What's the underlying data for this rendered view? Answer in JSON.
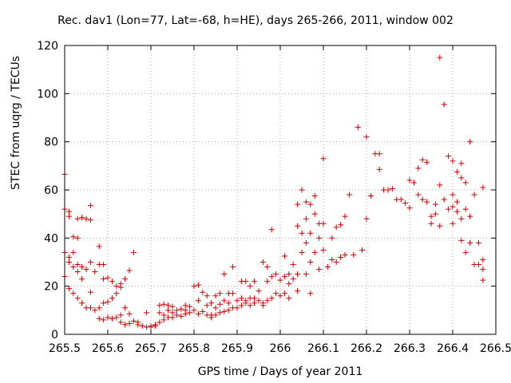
{
  "chart_data": {
    "type": "scatter",
    "title": "Rec. dav1 (Lon=77, Lat=-68, h=HE), days 265-266, 2011, window 002",
    "xlabel": "GPS time / Days of year 2011",
    "ylabel": "STEC from uqrg / TECUs",
    "xlim": [
      265.5,
      266.5
    ],
    "ylim": [
      0,
      120
    ],
    "xticks": [
      "265.5",
      "265.6",
      "265.7",
      "265.8",
      "265.9",
      "266",
      "266.1",
      "266.2",
      "266.3",
      "266.4",
      "266.5"
    ],
    "yticks": [
      "0",
      "20",
      "40",
      "60",
      "80",
      "100",
      "120"
    ],
    "grid": true,
    "marker": "+",
    "color": "#cc0000",
    "series": [
      {
        "points": [
          [
            265.5,
            66.5
          ],
          [
            265.5,
            52
          ],
          [
            265.5,
            34
          ],
          [
            265.5,
            24
          ],
          [
            265.51,
            51
          ],
          [
            265.51,
            49
          ],
          [
            265.51,
            32
          ],
          [
            265.51,
            30
          ],
          [
            265.51,
            19
          ],
          [
            265.52,
            40.5
          ],
          [
            265.52,
            34
          ],
          [
            265.52,
            28
          ],
          [
            265.52,
            17
          ],
          [
            265.53,
            48
          ],
          [
            265.53,
            40
          ],
          [
            265.53,
            29
          ],
          [
            265.53,
            26
          ],
          [
            265.53,
            15
          ],
          [
            265.54,
            48.5
          ],
          [
            265.54,
            28
          ],
          [
            265.54,
            23
          ],
          [
            265.54,
            13
          ],
          [
            265.55,
            48
          ],
          [
            265.55,
            27
          ],
          [
            265.55,
            11
          ],
          [
            265.56,
            53.5
          ],
          [
            265.56,
            47.5
          ],
          [
            265.56,
            30
          ],
          [
            265.56,
            17.5
          ],
          [
            265.56,
            11
          ],
          [
            265.57,
            26
          ],
          [
            265.57,
            10
          ],
          [
            265.58,
            36.5
          ],
          [
            265.58,
            29
          ],
          [
            265.58,
            11
          ],
          [
            265.58,
            6.5
          ],
          [
            265.59,
            29
          ],
          [
            265.59,
            23
          ],
          [
            265.59,
            13
          ],
          [
            265.59,
            6
          ],
          [
            265.6,
            23.5
          ],
          [
            265.6,
            13.5
          ],
          [
            265.6,
            7
          ],
          [
            265.61,
            22
          ],
          [
            265.61,
            15
          ],
          [
            265.61,
            6.5
          ],
          [
            265.62,
            20
          ],
          [
            265.62,
            17
          ],
          [
            265.62,
            7
          ],
          [
            265.63,
            21
          ],
          [
            265.63,
            19.5
          ],
          [
            265.63,
            5
          ],
          [
            265.63,
            8
          ],
          [
            265.64,
            23
          ],
          [
            265.64,
            11
          ],
          [
            265.64,
            4
          ],
          [
            265.65,
            26.5
          ],
          [
            265.65,
            8.5
          ],
          [
            265.65,
            4.5
          ],
          [
            265.66,
            34
          ],
          [
            265.66,
            5.5
          ],
          [
            265.67,
            5
          ],
          [
            265.67,
            4
          ],
          [
            265.68,
            3.5
          ],
          [
            265.69,
            9
          ],
          [
            265.69,
            3
          ],
          [
            265.7,
            3.5
          ],
          [
            265.7,
            3
          ],
          [
            265.71,
            4
          ],
          [
            265.71,
            3.5
          ],
          [
            265.72,
            12
          ],
          [
            265.72,
            9
          ],
          [
            265.72,
            5
          ],
          [
            265.73,
            12.5
          ],
          [
            265.73,
            8
          ],
          [
            265.73,
            6
          ],
          [
            265.74,
            12
          ],
          [
            265.74,
            10
          ],
          [
            265.74,
            7
          ],
          [
            265.75,
            11.5
          ],
          [
            265.75,
            9
          ],
          [
            265.75,
            7
          ],
          [
            265.76,
            10
          ],
          [
            265.76,
            8
          ],
          [
            265.77,
            10.5
          ],
          [
            265.77,
            7.5
          ],
          [
            265.78,
            12
          ],
          [
            265.78,
            10
          ],
          [
            265.78,
            8.5
          ],
          [
            265.79,
            11.5
          ],
          [
            265.79,
            9
          ],
          [
            265.8,
            20
          ],
          [
            265.8,
            10
          ],
          [
            265.81,
            20.5
          ],
          [
            265.81,
            14
          ],
          [
            265.81,
            8.5
          ],
          [
            265.82,
            17.5
          ],
          [
            265.82,
            9.5
          ],
          [
            265.83,
            16
          ],
          [
            265.83,
            12
          ],
          [
            265.83,
            8
          ],
          [
            265.84,
            13
          ],
          [
            265.84,
            8
          ],
          [
            265.84,
            7
          ],
          [
            265.85,
            16
          ],
          [
            265.85,
            11
          ],
          [
            265.85,
            8
          ],
          [
            265.86,
            17
          ],
          [
            265.86,
            12.5
          ],
          [
            265.86,
            9
          ],
          [
            265.87,
            25
          ],
          [
            265.87,
            14
          ],
          [
            265.87,
            9.5
          ],
          [
            265.88,
            17
          ],
          [
            265.88,
            13
          ],
          [
            265.88,
            10
          ],
          [
            265.89,
            28
          ],
          [
            265.89,
            17
          ],
          [
            265.89,
            11
          ],
          [
            265.9,
            14
          ],
          [
            265.9,
            11
          ],
          [
            265.91,
            22
          ],
          [
            265.91,
            15
          ],
          [
            265.91,
            12
          ],
          [
            265.92,
            22
          ],
          [
            265.92,
            14
          ],
          [
            265.92,
            13
          ],
          [
            265.93,
            20
          ],
          [
            265.93,
            15
          ],
          [
            265.93,
            12
          ],
          [
            265.94,
            22
          ],
          [
            265.94,
            15
          ],
          [
            265.94,
            13
          ],
          [
            265.95,
            18
          ],
          [
            265.95,
            14
          ],
          [
            265.96,
            30
          ],
          [
            265.96,
            13
          ],
          [
            265.96,
            12
          ],
          [
            265.97,
            28
          ],
          [
            265.97,
            22
          ],
          [
            265.97,
            14
          ],
          [
            265.98,
            43.5
          ],
          [
            265.98,
            24
          ],
          [
            265.98,
            15
          ],
          [
            265.99,
            25
          ],
          [
            265.99,
            17
          ],
          [
            266.0,
            22.5
          ],
          [
            266.0,
            16
          ],
          [
            266.01,
            32.5
          ],
          [
            266.01,
            24
          ],
          [
            266.01,
            17
          ],
          [
            266.02,
            25
          ],
          [
            266.02,
            21
          ],
          [
            266.02,
            15
          ],
          [
            266.03,
            29
          ],
          [
            266.03,
            23
          ],
          [
            266.04,
            54
          ],
          [
            266.04,
            45
          ],
          [
            266.04,
            25
          ],
          [
            266.04,
            18
          ],
          [
            266.05,
            60
          ],
          [
            266.05,
            42
          ],
          [
            266.05,
            34
          ],
          [
            266.06,
            55
          ],
          [
            266.06,
            48
          ],
          [
            266.06,
            38
          ],
          [
            266.06,
            25
          ],
          [
            266.07,
            54
          ],
          [
            266.07,
            42
          ],
          [
            266.07,
            30
          ],
          [
            266.07,
            17
          ],
          [
            266.08,
            57.5
          ],
          [
            266.08,
            50
          ],
          [
            266.08,
            34
          ],
          [
            266.09,
            46
          ],
          [
            266.09,
            40
          ],
          [
            266.09,
            27
          ],
          [
            266.1,
            73
          ],
          [
            266.1,
            46
          ],
          [
            266.1,
            35
          ],
          [
            266.11,
            28
          ],
          [
            266.12,
            40
          ],
          [
            266.12,
            31
          ],
          [
            266.13,
            44.5
          ],
          [
            266.13,
            30
          ],
          [
            266.14,
            45.5
          ],
          [
            266.14,
            32
          ],
          [
            266.15,
            49
          ],
          [
            266.15,
            33
          ],
          [
            266.16,
            58
          ],
          [
            266.17,
            33
          ],
          [
            266.18,
            86
          ],
          [
            266.19,
            35
          ],
          [
            266.2,
            82
          ],
          [
            266.2,
            48
          ],
          [
            266.21,
            57.5
          ],
          [
            266.22,
            75
          ],
          [
            266.23,
            75
          ],
          [
            266.23,
            68.5
          ],
          [
            266.24,
            60
          ],
          [
            266.25,
            60
          ],
          [
            266.26,
            60.5
          ],
          [
            266.27,
            56
          ],
          [
            266.28,
            56
          ],
          [
            266.29,
            54.5
          ],
          [
            266.3,
            52.5
          ],
          [
            266.3,
            64
          ],
          [
            266.31,
            63
          ],
          [
            266.32,
            69
          ],
          [
            266.32,
            58
          ],
          [
            266.33,
            72.5
          ],
          [
            266.33,
            56
          ],
          [
            266.34,
            71.5
          ],
          [
            266.34,
            55
          ],
          [
            266.35,
            49
          ],
          [
            266.35,
            46
          ],
          [
            266.36,
            54
          ],
          [
            266.36,
            50
          ],
          [
            266.37,
            115
          ],
          [
            266.37,
            62
          ],
          [
            266.37,
            45
          ],
          [
            266.38,
            95.5
          ],
          [
            266.38,
            56
          ],
          [
            266.39,
            74
          ],
          [
            266.39,
            52
          ],
          [
            266.4,
            72
          ],
          [
            266.4,
            58
          ],
          [
            266.4,
            53
          ],
          [
            266.4,
            46
          ],
          [
            266.41,
            67.5
          ],
          [
            266.41,
            55
          ],
          [
            266.41,
            51
          ],
          [
            266.42,
            71
          ],
          [
            266.42,
            65
          ],
          [
            266.42,
            48
          ],
          [
            266.42,
            39
          ],
          [
            266.43,
            63
          ],
          [
            266.43,
            52
          ],
          [
            266.43,
            34
          ],
          [
            266.44,
            80
          ],
          [
            266.44,
            49
          ],
          [
            266.44,
            38
          ],
          [
            266.45,
            58
          ],
          [
            266.45,
            29
          ],
          [
            266.46,
            38
          ],
          [
            266.46,
            29
          ],
          [
            266.47,
            61
          ],
          [
            266.47,
            31
          ],
          [
            266.47,
            27
          ],
          [
            266.47,
            22.5
          ]
        ]
      }
    ]
  }
}
